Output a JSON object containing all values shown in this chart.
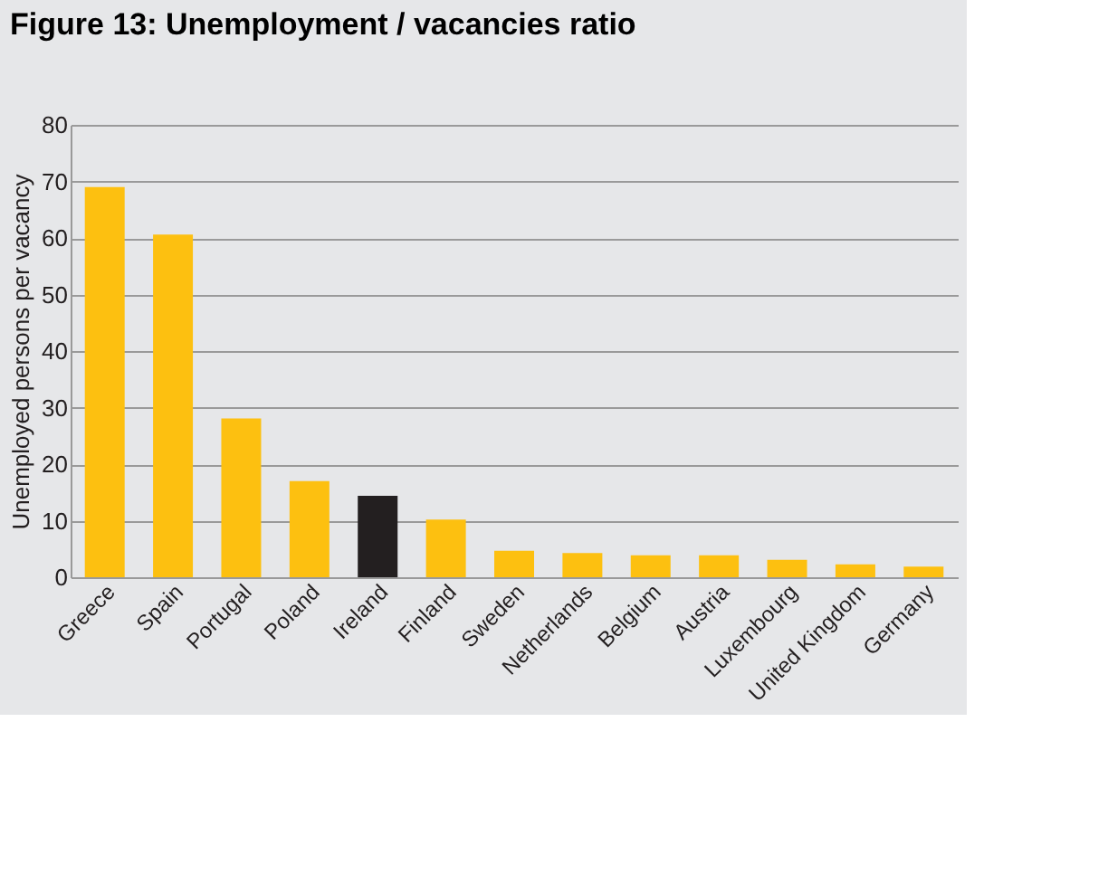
{
  "chart_data": {
    "type": "bar",
    "title": "Figure 13: Unemployment / vacancies ratio",
    "ylabel": "Unemployed persons per vacancy",
    "categories": [
      "Greece",
      "Spain",
      "Portugal",
      "Poland",
      "Ireland",
      "Finland",
      "Sweden",
      "Netherlands",
      "Belgium",
      "Austria",
      "Luxembourg",
      "United Kingdom",
      "Germany"
    ],
    "values": [
      69,
      60.6,
      28.1,
      17,
      14.4,
      10.2,
      4.7,
      4.3,
      3.9,
      3.9,
      3.1,
      2.3,
      1.9
    ],
    "colors": [
      "#fdc010",
      "#fdc010",
      "#fdc010",
      "#fdc010",
      "#231f20",
      "#fdc010",
      "#fdc010",
      "#fdc010",
      "#fdc010",
      "#fdc010",
      "#fdc010",
      "#fdc010",
      "#fdc010"
    ],
    "ylim": [
      0,
      80
    ],
    "yticks": [
      0,
      10,
      20,
      30,
      40,
      50,
      60,
      70,
      80
    ],
    "grid": "y"
  }
}
